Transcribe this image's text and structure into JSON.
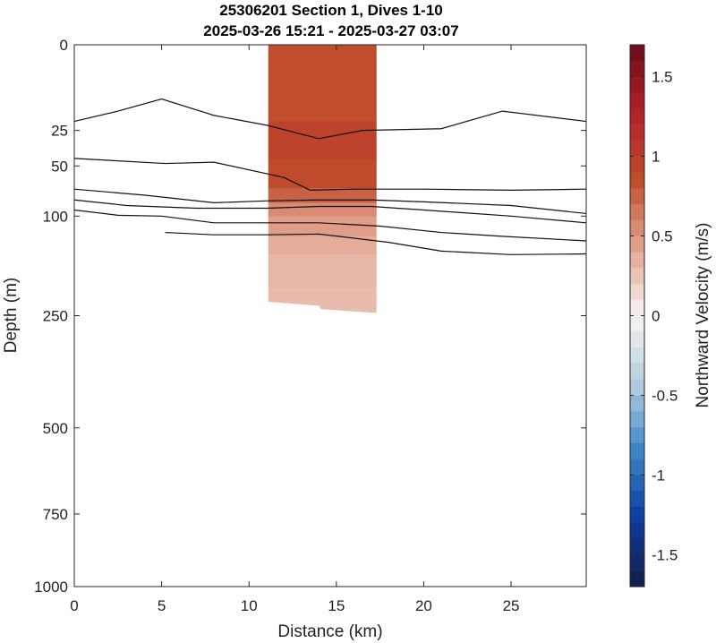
{
  "chart_data": {
    "type": "heatmap",
    "title": "25306201 Section 1, Dives 1-10",
    "subtitle": "2025-03-26 15:21 - 2025-03-27 03:07",
    "xlabel": "Distance (km)",
    "ylabel": "Depth (m)",
    "xlim": [
      0,
      29.3
    ],
    "ylim": [
      1000,
      0
    ],
    "x_ticks": [
      "0",
      "5",
      "10",
      "15",
      "20",
      "25"
    ],
    "x_tick_values": [
      0,
      5,
      10,
      15,
      20,
      25
    ],
    "y_ticks": [
      "0",
      "25",
      "50",
      "100",
      "250",
      "500",
      "750",
      "1000"
    ],
    "y_tick_values": [
      0,
      25,
      50,
      100,
      250,
      500,
      750,
      1000
    ],
    "y_scale": "sqrt",
    "grid": false,
    "colorbar": {
      "label": "Northward Velocity (m/s)",
      "range": [
        -1.7,
        1.7
      ],
      "ticks": [
        "-1.5",
        "-1",
        "-0.5",
        "0",
        "0.5",
        "1",
        "1.5"
      ],
      "tick_values": [
        -1.5,
        -1,
        -0.5,
        0,
        0.5,
        1,
        1.5
      ],
      "colors": [
        "#141c48",
        "#0b3c9e",
        "#3c86c8",
        "#b5cedd",
        "#f6f4f3",
        "#e2a38f",
        "#c04e2d",
        "#b3202a",
        "#6a0e1d"
      ]
    },
    "velocity_section": {
      "x_range": [
        11.1,
        17.3
      ],
      "bands": [
        {
          "depth_top": 0,
          "depth_bottom": 20,
          "velocity": 0.85
        },
        {
          "depth_top": 20,
          "depth_bottom": 45,
          "velocity": 0.95
        },
        {
          "depth_top": 45,
          "depth_bottom": 70,
          "velocity": 0.88
        },
        {
          "depth_top": 70,
          "depth_bottom": 85,
          "velocity": 0.75
        },
        {
          "depth_top": 85,
          "depth_bottom": 100,
          "velocity": 0.55
        },
        {
          "depth_top": 100,
          "depth_bottom": 125,
          "velocity": 0.45
        },
        {
          "depth_top": 125,
          "depth_bottom": 150,
          "velocity": 0.38
        },
        {
          "depth_top": 150,
          "depth_bottom": 200,
          "velocity": 0.32
        }
      ],
      "bottom_depth": [
        [
          11.1,
          225
        ],
        [
          14.0,
          232
        ],
        [
          14.1,
          238
        ],
        [
          17.3,
          245
        ]
      ]
    },
    "contour_lines": [
      {
        "x": [
          0,
          2.5,
          5,
          8,
          11,
          14,
          16.5,
          21,
          24.5,
          29.3
        ],
        "y": [
          20,
          15,
          10,
          17,
          22,
          30,
          25,
          24,
          15,
          20
        ]
      },
      {
        "x": [
          0,
          5.2,
          8,
          12,
          13.5,
          16,
          20,
          25,
          29.3
        ],
        "y": [
          44,
          48,
          47,
          60,
          72,
          71,
          71,
          72,
          71
        ]
      },
      {
        "x": [
          0,
          4,
          8,
          11,
          14,
          17,
          20,
          25,
          29.3
        ],
        "y": [
          71,
          77,
          85,
          83,
          82,
          82,
          84,
          88,
          97
        ]
      },
      {
        "x": [
          0,
          3,
          7,
          11,
          14,
          17,
          20,
          25,
          29.3
        ],
        "y": [
          82,
          88,
          91,
          91,
          89,
          89,
          93,
          100,
          108
        ]
      },
      {
        "x": [
          0,
          2.5,
          5,
          8,
          11,
          14,
          17.5,
          21,
          24.5,
          29.3
        ],
        "y": [
          93,
          99,
          100,
          108,
          108,
          108,
          112,
          120,
          125,
          131
        ]
      },
      {
        "x": [
          5.2,
          8,
          11,
          14,
          18,
          21,
          25,
          29.3
        ],
        "y": [
          120,
          123,
          123,
          122,
          133,
          145,
          150,
          149
        ]
      }
    ]
  }
}
